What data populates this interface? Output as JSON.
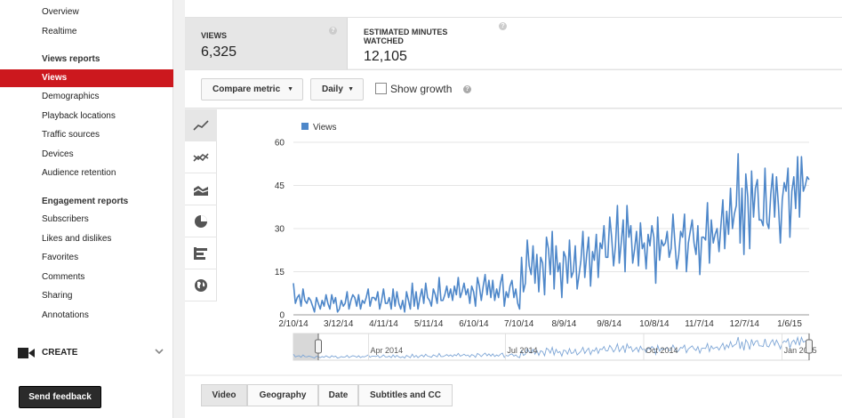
{
  "sidebar": {
    "top_items": [
      "Overview",
      "Realtime"
    ],
    "views_heading": "Views reports",
    "views_items": [
      "Views",
      "Demographics",
      "Playback locations",
      "Traffic sources",
      "Devices",
      "Audience retention"
    ],
    "active_item": "Views",
    "engagement_heading": "Engagement reports",
    "engagement_items": [
      "Subscribers",
      "Likes and dislikes",
      "Favorites",
      "Comments",
      "Sharing",
      "Annotations"
    ],
    "create_label": "CREATE",
    "feedback_label": "Send feedback"
  },
  "metrics": {
    "views_title": "VIEWS",
    "views_value": "6,325",
    "minutes_title": "ESTIMATED MINUTES WATCHED",
    "minutes_value": "12,105",
    "help_glyph": "?"
  },
  "toolbar": {
    "compare_label": "Compare metric",
    "interval_label": "Daily",
    "show_growth_label": "Show growth",
    "caret_glyph": "▼"
  },
  "chart_types": [
    "line-chart-icon",
    "multi-line-chart-icon",
    "stacked-area-chart-icon",
    "pie-chart-icon",
    "bar-chart-icon",
    "map-globe-icon"
  ],
  "tabs": [
    "Video",
    "Geography",
    "Date",
    "Subtitles and CC"
  ],
  "active_tab": "Video",
  "colors": {
    "accent": "#cc181e",
    "series": "#4e87c9"
  },
  "chart_data": {
    "type": "line",
    "series": [
      {
        "name": "Views",
        "values": [
          11,
          4,
          6,
          7,
          3,
          9,
          5,
          4,
          6,
          5,
          3,
          1,
          6,
          4,
          2,
          5,
          3,
          7,
          4,
          2,
          7,
          4,
          6,
          1,
          2,
          5,
          3,
          4,
          8,
          2,
          5,
          7,
          6,
          3,
          7,
          2,
          5,
          4,
          6,
          9,
          3,
          6,
          6,
          5,
          8,
          2,
          5,
          9,
          4,
          4,
          6,
          2,
          9,
          3,
          8,
          4,
          2,
          5,
          1,
          8,
          5,
          2,
          11,
          3,
          8,
          2,
          6,
          9,
          4,
          11,
          6,
          5,
          3,
          9,
          7,
          4,
          13,
          5,
          5,
          7,
          10,
          6,
          9,
          5,
          10,
          7,
          13,
          6,
          8,
          11,
          7,
          9,
          4,
          10,
          8,
          3,
          13,
          10,
          5,
          10,
          14,
          7,
          12,
          6,
          12,
          5,
          9,
          6,
          11,
          14,
          3,
          8,
          6,
          10,
          12,
          6,
          9,
          4,
          2,
          20,
          8,
          11,
          26,
          17,
          14,
          24,
          11,
          21,
          8,
          20,
          18,
          7,
          27,
          23,
          14,
          29,
          9,
          24,
          15,
          18,
          6,
          22,
          20,
          11,
          26,
          13,
          15,
          24,
          9,
          14,
          19,
          29,
          13,
          21,
          27,
          10,
          22,
          19,
          28,
          13,
          25,
          23,
          31,
          20,
          20,
          34,
          27,
          17,
          24,
          38,
          18,
          25,
          33,
          15,
          38,
          27,
          31,
          18,
          23,
          29,
          17,
          32,
          23,
          25,
          16,
          28,
          24,
          31,
          27,
          11,
          34,
          19,
          26,
          24,
          25,
          29,
          20,
          23,
          35,
          25,
          16,
          21,
          29,
          27,
          35,
          15,
          25,
          29,
          33,
          25,
          21,
          31,
          14,
          27,
          27,
          26,
          39,
          18,
          33,
          25,
          28,
          30,
          22,
          31,
          40,
          23,
          36,
          28,
          44,
          30,
          35,
          38,
          56,
          25,
          44,
          21,
          49,
          41,
          23,
          50,
          34,
          44,
          47,
          33,
          33,
          31,
          51,
          32,
          30,
          42,
          49,
          34,
          48,
          38,
          25,
          40,
          46,
          43,
          51,
          27,
          43,
          48,
          37,
          55,
          34,
          55,
          43,
          45,
          48,
          47
        ]
      }
    ],
    "start_date": "2014-02-10",
    "end_date": "2015-01-19",
    "x_tick_labels": [
      "2/10/14",
      "3/12/14",
      "4/11/14",
      "5/11/14",
      "6/10/14",
      "7/10/14",
      "8/9/14",
      "9/8/14",
      "10/8/14",
      "11/7/14",
      "12/7/14",
      "1/6/15"
    ],
    "y_tick_labels": [
      "0",
      "15",
      "30",
      "45",
      "60"
    ],
    "ylim": [
      0,
      60
    ],
    "legend_position": "top-left",
    "grid": "horizontal",
    "navigator_labels": [
      "Apr 2014",
      "Jul 2014",
      "Oct 2014",
      "Jan 2015"
    ]
  }
}
